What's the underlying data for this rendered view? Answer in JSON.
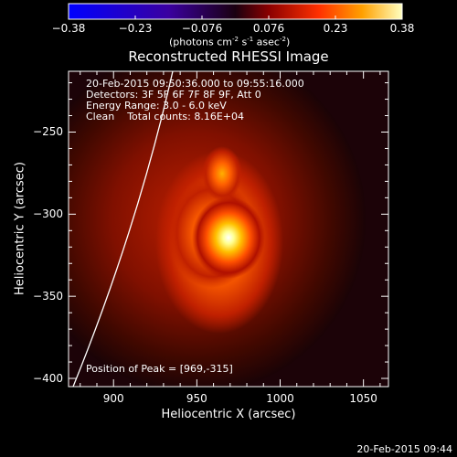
{
  "chart_data": {
    "type": "heatmap",
    "title": "Reconstructed RHESSI Image",
    "xlabel": "Heliocentric X (arcsec)",
    "ylabel": "Heliocentric Y (arcsec)",
    "xlim": [
      873,
      1065
    ],
    "ylim": [
      -405,
      -213
    ],
    "x_ticks": [
      900,
      950,
      1000,
      1050
    ],
    "y_ticks": [
      -250,
      -300,
      -350,
      -400
    ],
    "colorbar": {
      "ticks": [
        "-0.38",
        "-0.23",
        "-0.076",
        "0.076",
        "0.23",
        "0.38"
      ],
      "range": [
        -0.38,
        0.38
      ],
      "units_text": "(photons cm",
      "units_sup1": "-2",
      "units_mid": " s",
      "units_sup2": "-1",
      "units_mid2": " asec",
      "units_sup3": "-2",
      "units_end": ")"
    },
    "annotations": {
      "line1": "20-Feb-2015 09:50:36.000 to 09:55:16.000",
      "line2": "Detectors: 3F 5F 6F 7F 8F 9F, Att 0",
      "line3": "Energy Range: 3.0 - 6.0 keV",
      "line4": "Clean    Total counts: 8.16E+04",
      "peak": "Position of Peak = [969,-315]"
    },
    "peak_position": [
      969,
      -315
    ],
    "timestamp": "20-Feb-2015 09:44",
    "colors": {
      "background": "#000000",
      "text": "#ffffff",
      "colormap": "hot-with-blue-negatives"
    }
  }
}
